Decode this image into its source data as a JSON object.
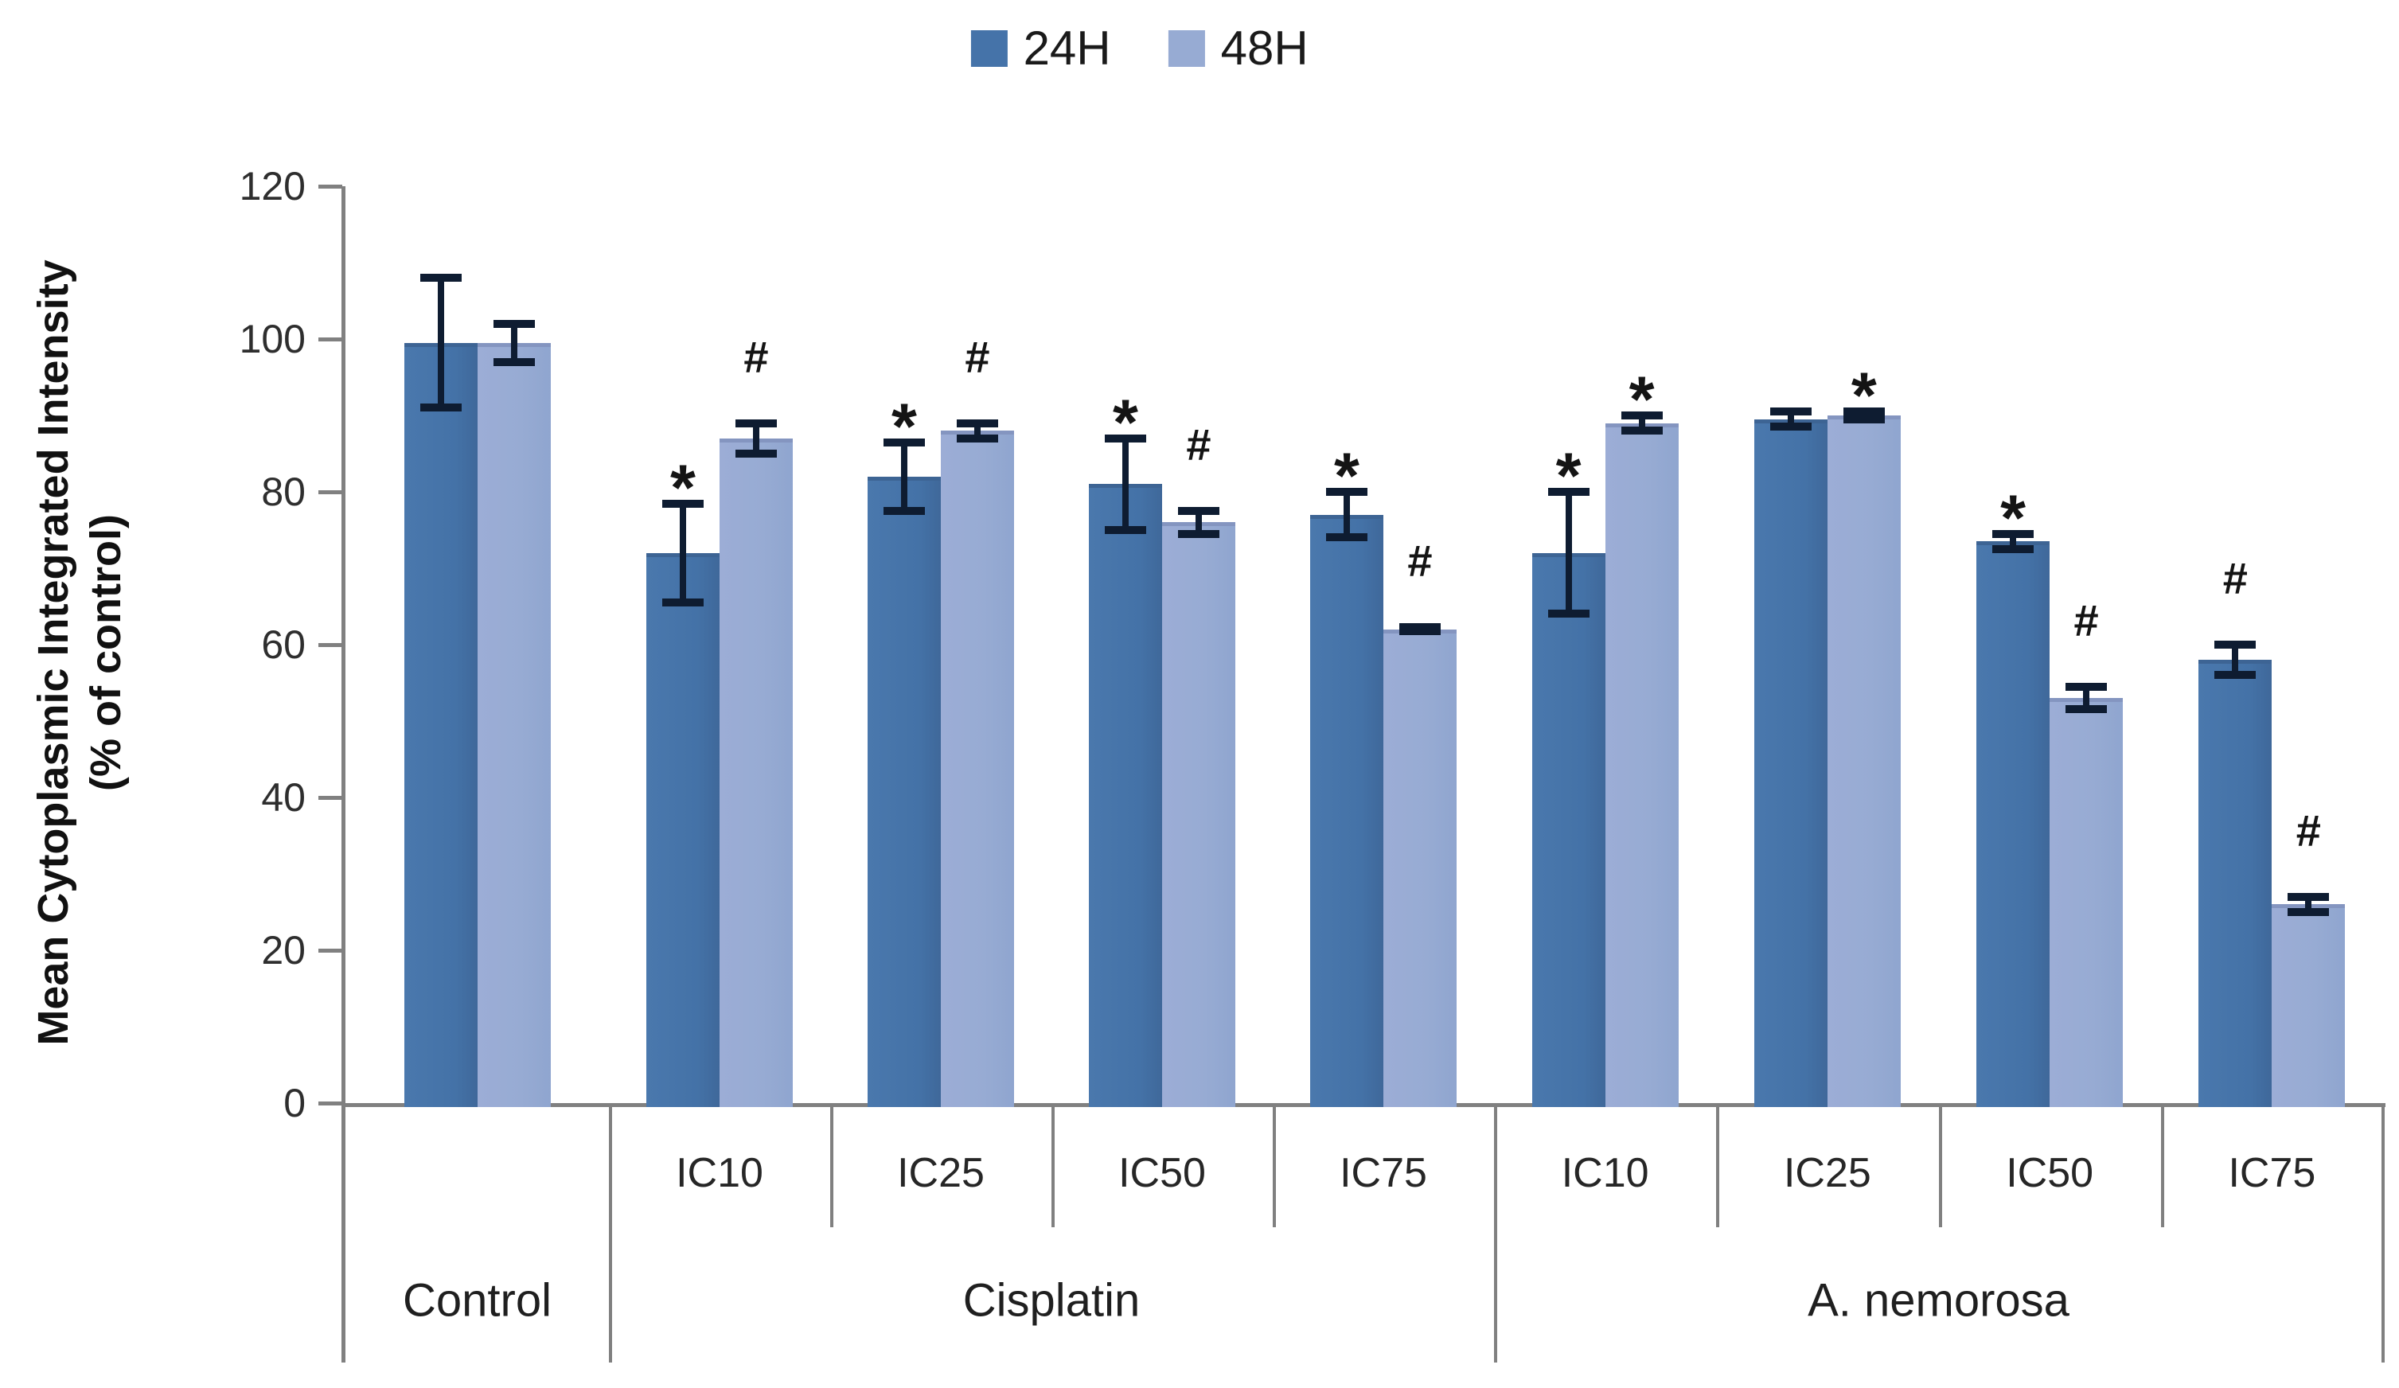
{
  "figure": {
    "background": "#ffffff",
    "axis_color": "#808080",
    "error_bar_color": "#0e1c31"
  },
  "chart_data": {
    "type": "bar",
    "title": "",
    "ylabel_line1": "Mean Cytoplasmic Integrated Intensity",
    "ylabel_line2": "(% of control)",
    "xlabel": "",
    "ylim": [
      0,
      120
    ],
    "yticks": [
      0,
      20,
      40,
      60,
      80,
      100,
      120
    ],
    "grid": false,
    "legend_position": "top-center",
    "error_bars": true,
    "significance_symbols": [
      "*",
      "#"
    ],
    "series": [
      {
        "name": "24H",
        "color": "#4573A9"
      },
      {
        "name": "48H",
        "color": "#97ABD3"
      }
    ],
    "groups": [
      {
        "label": "Control",
        "cells": [
          {
            "sub": "",
            "bars": [
              {
                "series": "24H",
                "value": 99.5,
                "error": 9,
                "marker": ""
              },
              {
                "series": "48H",
                "value": 99.5,
                "error": 3,
                "marker": ""
              }
            ]
          }
        ]
      },
      {
        "label": "Cisplatin",
        "cells": [
          {
            "sub": "IC10",
            "bars": [
              {
                "series": "24H",
                "value": 72,
                "error": 7,
                "marker": "*"
              },
              {
                "series": "48H",
                "value": 87,
                "error": 2.5,
                "marker": "#"
              }
            ]
          },
          {
            "sub": "IC25",
            "bars": [
              {
                "series": "24H",
                "value": 82,
                "error": 5,
                "marker": "*"
              },
              {
                "series": "48H",
                "value": 88,
                "error": 1.5,
                "marker": "#"
              }
            ]
          },
          {
            "sub": "IC50",
            "bars": [
              {
                "series": "24H",
                "value": 81,
                "error": 6.5,
                "marker": "*"
              },
              {
                "series": "48H",
                "value": 76,
                "error": 2,
                "marker": "#"
              }
            ]
          },
          {
            "sub": "IC75",
            "bars": [
              {
                "series": "24H",
                "value": 77,
                "error": 3.5,
                "marker": "*"
              },
              {
                "series": "48H",
                "value": 62,
                "error": 0.8,
                "marker": "#"
              }
            ]
          }
        ]
      },
      {
        "label": "A. nemorosa",
        "cells": [
          {
            "sub": "IC10",
            "bars": [
              {
                "series": "24H",
                "value": 72,
                "error": 8.5,
                "marker": "*"
              },
              {
                "series": "48H",
                "value": 89,
                "error": 1.5,
                "marker": "*"
              }
            ]
          },
          {
            "sub": "IC25",
            "bars": [
              {
                "series": "24H",
                "value": 89.5,
                "error": 1.5,
                "marker": ""
              },
              {
                "series": "48H",
                "value": 90,
                "error": 1,
                "marker": "*"
              }
            ]
          },
          {
            "sub": "IC50",
            "bars": [
              {
                "series": "24H",
                "value": 73.5,
                "error": 1.5,
                "marker": "*"
              },
              {
                "series": "48H",
                "value": 53,
                "error": 2,
                "marker": "#"
              }
            ]
          },
          {
            "sub": "IC75",
            "bars": [
              {
                "series": "24H",
                "value": 58,
                "error": 2.5,
                "marker": "#"
              },
              {
                "series": "48H",
                "value": 26,
                "error": 1.5,
                "marker": "#"
              }
            ]
          }
        ]
      }
    ]
  }
}
